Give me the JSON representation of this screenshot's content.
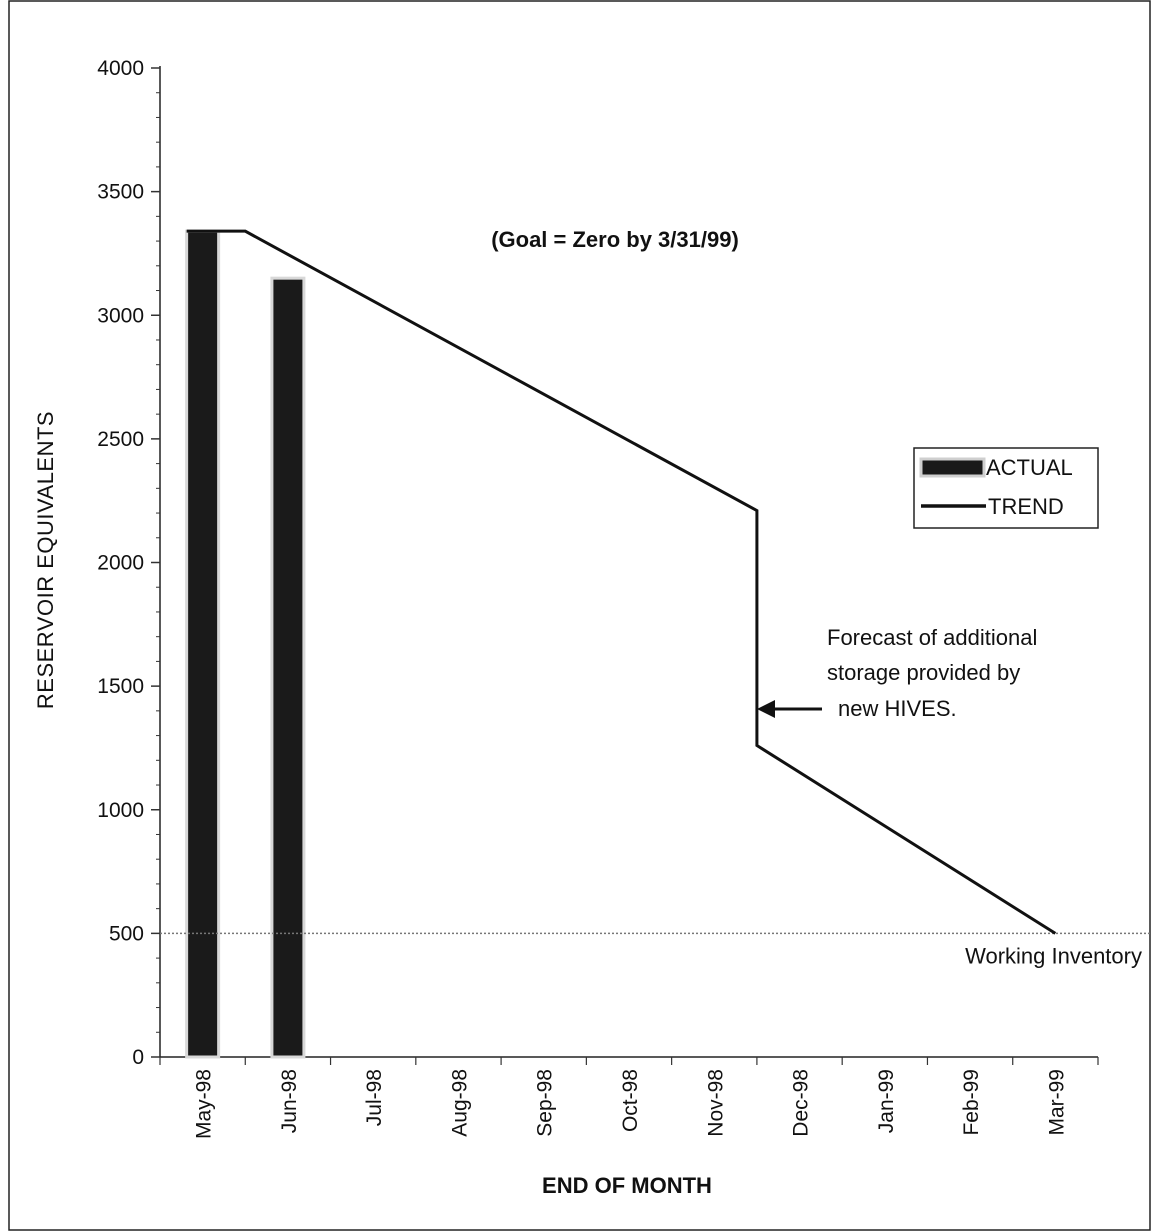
{
  "chart_data": {
    "type": "bar",
    "ylabel": "RESERVOIR EQUIVALENTS",
    "xlabel": "END OF MONTH",
    "ylim": [
      0,
      4000
    ],
    "yticks": [
      0,
      500,
      1000,
      1500,
      2000,
      2500,
      3000,
      3500,
      4000
    ],
    "categories": [
      "May-98",
      "Jun-98",
      "Jul-98",
      "Aug-98",
      "Sep-98",
      "Oct-98",
      "Nov-98",
      "Dec-98",
      "Jan-99",
      "Feb-99",
      "Mar-99"
    ],
    "series": [
      {
        "name": "ACTUAL",
        "kind": "bar",
        "values": [
          3340,
          3150,
          null,
          null,
          null,
          null,
          null,
          null,
          null,
          null,
          null
        ]
      },
      {
        "name": "TREND",
        "kind": "line",
        "points": [
          {
            "x": "May-98",
            "y": 3340
          },
          {
            "x": "May-98/Jun-98",
            "y": 3340
          },
          {
            "x": "Nov-98/Dec-98",
            "y": 2210
          },
          {
            "x": "Nov-98/Dec-98",
            "y": 1260
          },
          {
            "x": "Mar-99",
            "y": 500
          }
        ]
      }
    ],
    "reference_line": {
      "y": 500,
      "label": "Working Inventory",
      "style": "dotted"
    },
    "annotations": {
      "goal": "(Goal = Zero by 3/31/99)",
      "forecast": [
        "Forecast of additional",
        "storage provided by",
        "new HIVES."
      ]
    },
    "legend": {
      "placement": "right",
      "entries": [
        "ACTUAL",
        "TREND"
      ]
    },
    "grid": false,
    "colors": {
      "bar": "#1a1a1a",
      "bar_border": "#d8d8d8",
      "line": "#111111"
    }
  }
}
